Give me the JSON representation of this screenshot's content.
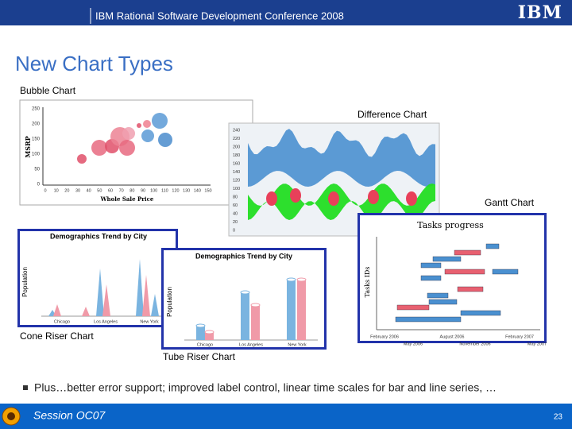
{
  "header": {
    "title": "IBM Rational Software Development Conference 2008",
    "logo": "IBM"
  },
  "slide": {
    "title": "New Chart Types"
  },
  "bubble": {
    "label": "Bubble Chart",
    "y_axis": "MSRP",
    "x_axis": "Whole Sale Price",
    "yticks": [
      "0",
      "50",
      "100",
      "150",
      "200",
      "250"
    ],
    "xticks": [
      "0",
      "10",
      "20",
      "30",
      "40",
      "50",
      "60",
      "70",
      "80",
      "90",
      "100",
      "110",
      "120",
      "130",
      "140",
      "150"
    ]
  },
  "difference": {
    "label": "Difference Chart",
    "yticks": [
      "0",
      "20",
      "40",
      "60",
      "80",
      "100",
      "120",
      "140",
      "160",
      "180",
      "200",
      "220",
      "240"
    ]
  },
  "gantt": {
    "label": "Gantt Chart",
    "title": "Tasks progress",
    "y_axis": "Tasks IDs",
    "xticks_top": [
      "February 2006",
      "August 2006",
      "February 2007"
    ],
    "xticks_bottom": [
      "May 2006",
      "November 2006",
      "May 2007"
    ]
  },
  "cone": {
    "label": "Cone Riser Chart",
    "title": "Demographics Trend by City",
    "y_axis": "Population",
    "categories": [
      "Chicago",
      "Los Angeles",
      "New York"
    ]
  },
  "tube": {
    "label": "Tube Riser Chart",
    "title": "Demographics Trend by City",
    "y_axis": "Population",
    "categories": [
      "Chicago",
      "Los Angeles",
      "New York"
    ]
  },
  "bullets": [
    "Plus…better error support; improved label control, linear time scales for bar and line series, …"
  ],
  "footer": {
    "session": "Session OC07",
    "page": 23
  }
}
